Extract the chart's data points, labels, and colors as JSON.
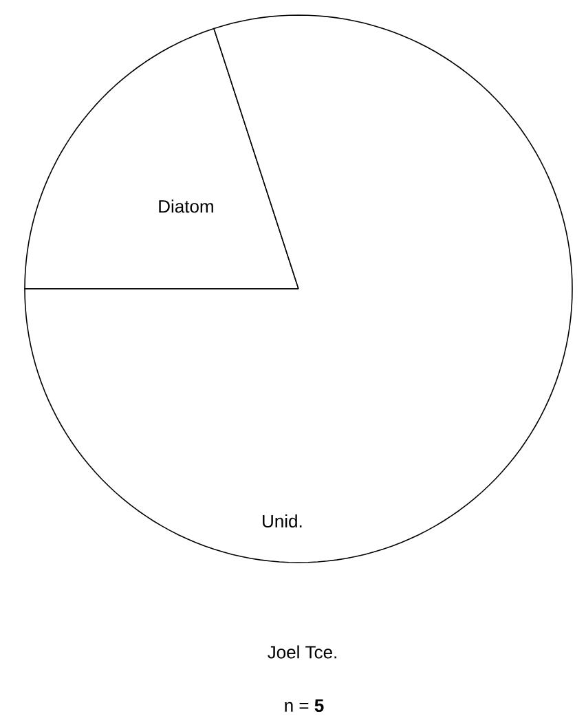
{
  "chart_data": {
    "type": "pie",
    "categories": [
      "Diatom",
      "Unid."
    ],
    "values": [
      20,
      80
    ],
    "colors": [
      "#ffffff",
      "#ffffff"
    ],
    "title": "Joel Tce.",
    "annotations": [
      "n = **5**"
    ]
  }
}
